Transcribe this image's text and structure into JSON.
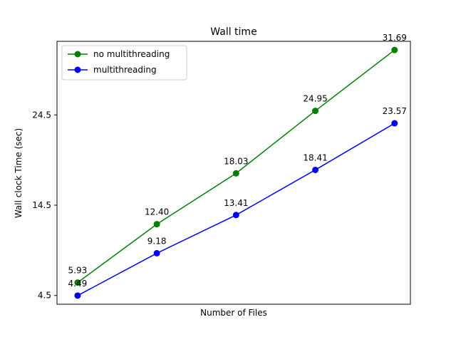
{
  "chart_data": {
    "type": "line",
    "title": "Wall time",
    "xlabel": "Number of Files",
    "ylabel": "Wall clock Time (sec)",
    "x": [
      1,
      2,
      3,
      4,
      5
    ],
    "xticks_shown": false,
    "yticks": [
      4.5,
      14.5,
      24.5
    ],
    "ytick_labels": [
      "4.5",
      "14.5",
      "24.5"
    ],
    "ylim": [
      3.53,
      32.65
    ],
    "xlim": [
      0.74,
      5.2
    ],
    "grid": false,
    "legend": "top-left",
    "series": [
      {
        "name": "no multithreading",
        "color": "#008000",
        "marker": "circle",
        "values": [
          5.93,
          12.4,
          18.03,
          24.95,
          31.69
        ],
        "labels": [
          "5.93",
          "12.40",
          "18.03",
          "24.95",
          "31.69"
        ]
      },
      {
        "name": "multithreading",
        "color": "#0000ff",
        "marker": "circle",
        "values": [
          4.49,
          9.18,
          13.41,
          18.41,
          23.57
        ],
        "labels": [
          "4.49",
          "9.18",
          "13.41",
          "18.41",
          "23.57"
        ]
      }
    ]
  }
}
